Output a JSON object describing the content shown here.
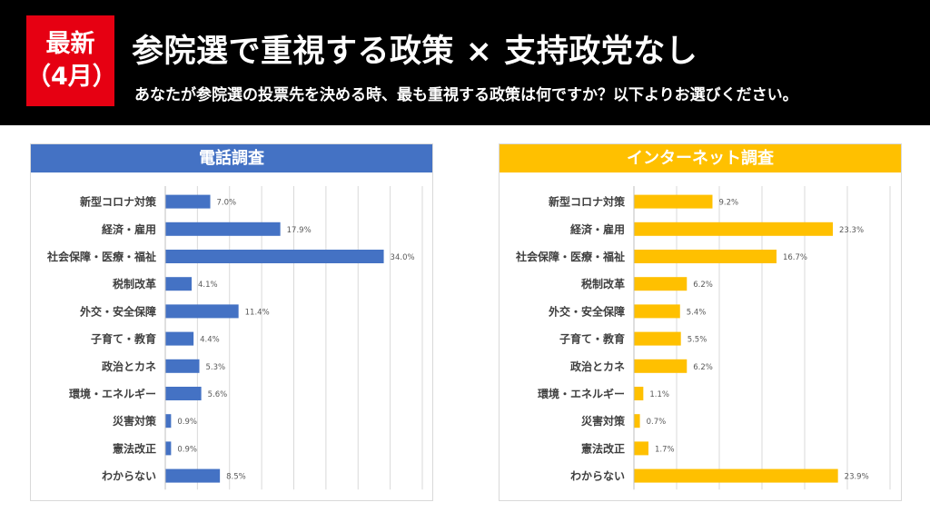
{
  "header": {
    "badge_line1": "最新",
    "badge_line2": "（4月）",
    "title": "参院選で重視する政策 × 支持政党なし",
    "subtitle": "あなたが参院選の投票先を決める時、最も重視する政策は何ですか？以下よりお選びください。"
  },
  "colors": {
    "header_bg": "#000000",
    "badge_bg": "#e60012",
    "phone": "#4472c4",
    "internet": "#ffc000"
  },
  "chart_data": [
    {
      "type": "bar",
      "orientation": "horizontal",
      "title": "電話調査",
      "color": "#4472c4",
      "xlim": [
        0,
        40
      ],
      "grid": true,
      "categories": [
        "新型コロナ対策",
        "経済・雇用",
        "社会保障・医療・福祉",
        "税制改革",
        "外交・安全保障",
        "子育て・教育",
        "政治とカネ",
        "環境・エネルギー",
        "災害対策",
        "憲法改正",
        "わからない"
      ],
      "values": [
        7.0,
        17.9,
        34.0,
        4.1,
        11.4,
        4.4,
        5.3,
        5.6,
        0.9,
        0.9,
        8.5
      ],
      "labels": [
        "7.0%",
        "17.9%",
        "34.0%",
        "4.1%",
        "11.4%",
        "4.4%",
        "5.3%",
        "5.6%",
        "0.9%",
        "0.9%",
        "8.5%"
      ]
    },
    {
      "type": "bar",
      "orientation": "horizontal",
      "title": "インターネット調査",
      "color": "#ffc000",
      "xlim": [
        0,
        30
      ],
      "grid": true,
      "categories": [
        "新型コロナ対策",
        "経済・雇用",
        "社会保障・医療・福祉",
        "税制改革",
        "外交・安全保障",
        "子育て・教育",
        "政治とカネ",
        "環境・エネルギー",
        "災害対策",
        "憲法改正",
        "わからない"
      ],
      "values": [
        9.2,
        23.3,
        16.7,
        6.2,
        5.4,
        5.5,
        6.2,
        1.1,
        0.7,
        1.7,
        23.9
      ],
      "labels": [
        "9.2%",
        "23.3%",
        "16.7%",
        "6.2%",
        "5.4%",
        "5.5%",
        "6.2%",
        "1.1%",
        "0.7%",
        "1.7%",
        "23.9%"
      ]
    }
  ]
}
